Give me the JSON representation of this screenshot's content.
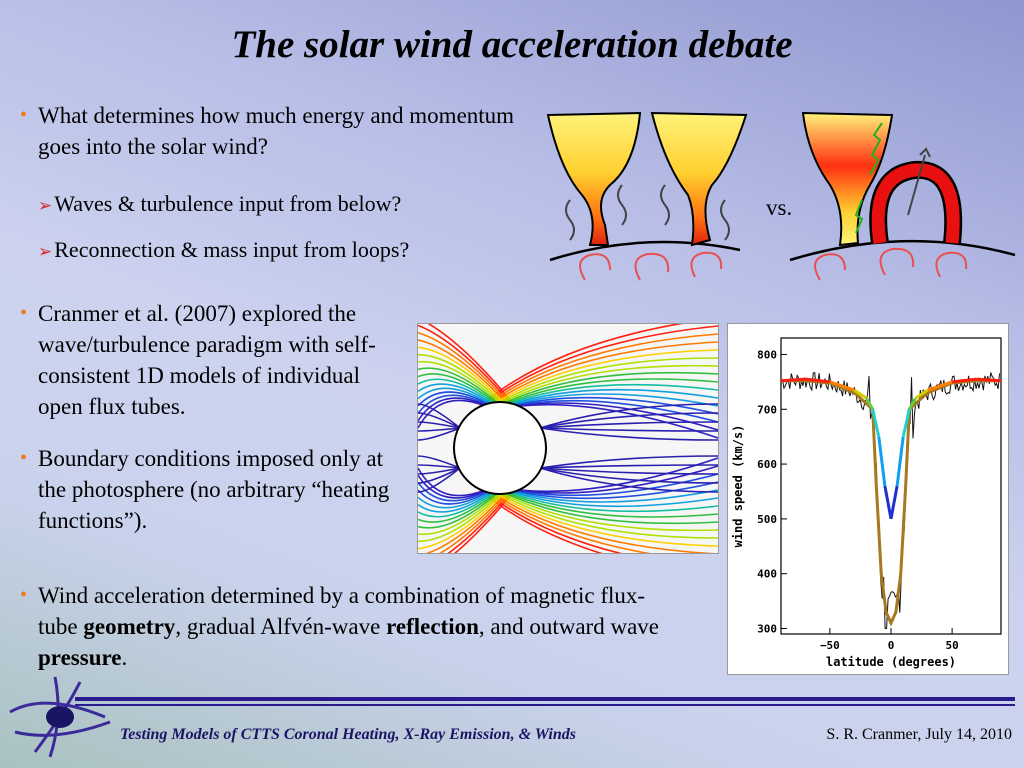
{
  "title": "The solar wind acceleration debate",
  "bullets": {
    "b1": "What determines how much energy and momentum goes into the solar wind?",
    "sub1": "Waves & turbulence input from below?",
    "sub2": "Reconnection & mass input from loops?",
    "vs": "vs.",
    "b2": "Cranmer et al. (2007) explored the wave/turbulence paradigm with self-consistent 1D models of individual open flux tubes.",
    "b3": "Boundary conditions imposed only at the photosphere (no arbitrary “heating functions”).",
    "b4_pre": "Wind acceleration determined by a combination of magnetic flux-tube ",
    "b4_geom": "geometry",
    "b4_mid": ", gradual Alfvén-wave ",
    "b4_refl": "reflection",
    "b4_mid2": ", and outward wave ",
    "b4_press": "pressure",
    "b4_end": "."
  },
  "footer": {
    "left": "Testing Models of CTTS Coronal Heating, X-Ray Emission, & Winds",
    "right": "S. R. Cranmer, July 14, 2010"
  },
  "chart_data": {
    "type": "line",
    "xlabel": "latitude (degrees)",
    "ylabel": "wind speed (km/s)",
    "xlim": [
      -90,
      90
    ],
    "ylim": [
      290,
      830
    ],
    "xticks": [
      -50,
      0,
      50
    ],
    "xtick_labels": [
      "−50",
      "0",
      "50"
    ],
    "yticks": [
      300,
      400,
      500,
      600,
      700,
      800
    ],
    "series": [
      {
        "x": [
          -90,
          -70,
          -50,
          -30,
          -20,
          -15,
          -10,
          -5,
          0,
          5,
          10,
          15,
          20,
          30,
          50,
          70,
          90
        ],
        "values": [
          752,
          755,
          750,
          735,
          720,
          700,
          650,
          560,
          500,
          560,
          650,
          700,
          720,
          735,
          750,
          755,
          752
        ]
      },
      {
        "x": [
          -90,
          -70,
          -50,
          -30,
          -20,
          -15,
          -12,
          -8,
          -4,
          0,
          4,
          8,
          12,
          15,
          20,
          30,
          50,
          70,
          90
        ],
        "values": [
          752,
          752,
          748,
          730,
          710,
          700,
          560,
          400,
          330,
          310,
          330,
          400,
          560,
          700,
          710,
          730,
          748,
          752,
          752
        ]
      }
    ],
    "colors": {
      "model": "#a6781f",
      "observed": "#111111"
    }
  }
}
